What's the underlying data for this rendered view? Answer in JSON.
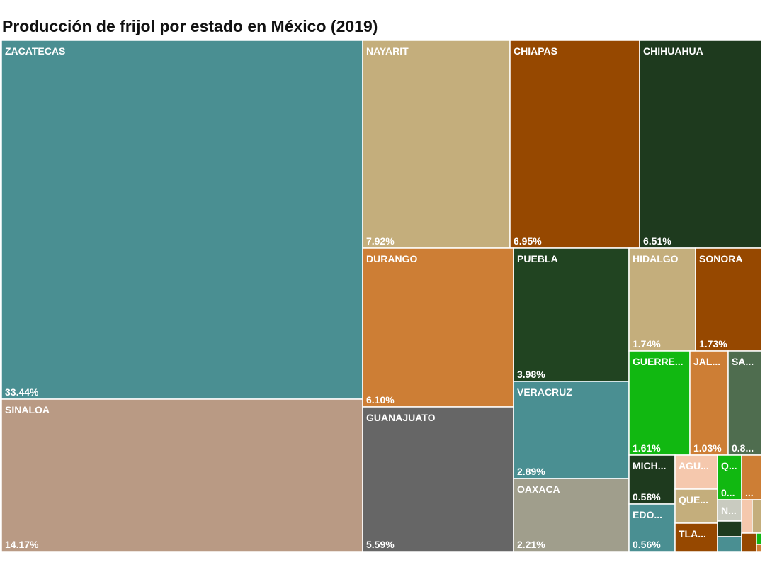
{
  "chart_data": {
    "type": "treemap",
    "title": "Producción de frijol por estado en México (2019)",
    "categories": [
      "ZACATECAS",
      "SINALOA",
      "NAYARIT",
      "CHIAPAS",
      "CHIHUAHUA",
      "DURANGO",
      "GUANAJUATO",
      "PUEBLA",
      "VERACRUZ",
      "OAXACA",
      "HIDALGO",
      "SONORA",
      "GUERRE...",
      "JAL...",
      "SA...",
      "MICH...",
      "EDO...",
      "AGU...",
      "QUE...",
      "TLA...",
      "Q...",
      null,
      "N...",
      null,
      null,
      null,
      null,
      null,
      null,
      null
    ],
    "values": [
      33.44,
      14.17,
      7.92,
      6.95,
      6.51,
      6.1,
      5.59,
      3.98,
      2.89,
      2.21,
      1.74,
      1.73,
      1.61,
      1.03,
      0.85,
      0.58,
      0.56,
      0.4,
      0.4,
      0.33,
      0.3,
      0.25,
      0.14,
      0.1,
      0.08,
      0.1,
      0.1,
      0.06,
      0.02,
      0.02
    ],
    "value_labels": [
      "33.44%",
      "14.17%",
      "7.92%",
      "6.95%",
      "6.51%",
      "6.10%",
      "5.59%",
      "3.98%",
      "2.89%",
      "2.21%",
      "1.74%",
      "1.73%",
      "1.61%",
      "1.03%",
      "0.8...",
      "0.58%",
      "0.56%",
      null,
      null,
      null,
      "0...",
      "...",
      null,
      null,
      null,
      null,
      null,
      null,
      null,
      null
    ],
    "colors": [
      "#4a8f92",
      "#b99a84",
      "#c4ae7c",
      "#964800",
      "#1e3a1e",
      "#cd7e35",
      "#666666",
      "#214421",
      "#4a8f92",
      "#a09e8c",
      "#c4ae7c",
      "#964800",
      "#11b811",
      "#cd7e35",
      "#4f6d4f",
      "#1e3a1e",
      "#4a8f92",
      "#f5c8ad",
      "#c4ae7c",
      "#964800",
      "#11b811",
      "#cd7e35",
      "#c9cbc0",
      "#f5c8ad",
      "#c4ae7c",
      "#1e3a1e",
      "#4a8f92",
      "#964800",
      "#11b811",
      "#cd7e35"
    ]
  }
}
